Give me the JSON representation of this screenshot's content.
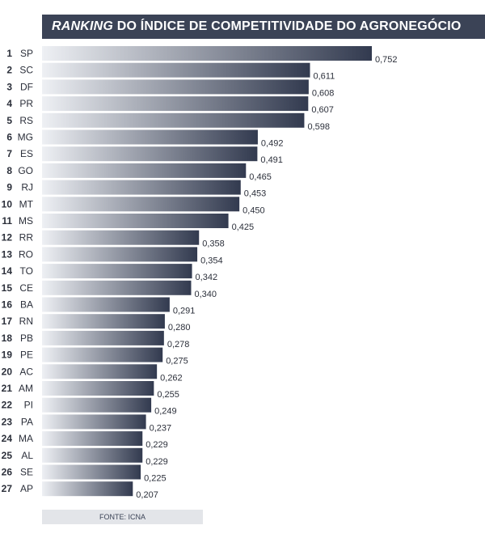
{
  "chart_data": {
    "type": "bar",
    "orientation": "horizontal",
    "title_emphasis": "RANKING",
    "title_rest": " DO ÍNDICE DE COMPETITIVIDADE DO AGRONEGÓCIO",
    "xlim": [
      0,
      0.752
    ],
    "grid": false,
    "legend": "none",
    "bar_gradient": [
      "#eef0f4",
      "#323a4f"
    ],
    "rows": [
      {
        "rank": "1",
        "state": "SP",
        "value": 0.752,
        "label": "0,752"
      },
      {
        "rank": "2",
        "state": "SC",
        "value": 0.611,
        "label": "0,611"
      },
      {
        "rank": "3",
        "state": "DF",
        "value": 0.608,
        "label": "0,608"
      },
      {
        "rank": "4",
        "state": "PR",
        "value": 0.607,
        "label": "0,607"
      },
      {
        "rank": "5",
        "state": "RS",
        "value": 0.598,
        "label": "0,598"
      },
      {
        "rank": "6",
        "state": "MG",
        "value": 0.492,
        "label": "0,492"
      },
      {
        "rank": "7",
        "state": "ES",
        "value": 0.491,
        "label": "0,491"
      },
      {
        "rank": "8",
        "state": "GO",
        "value": 0.465,
        "label": "0,465"
      },
      {
        "rank": "9",
        "state": "RJ",
        "value": 0.453,
        "label": "0,453"
      },
      {
        "rank": "10",
        "state": "MT",
        "value": 0.45,
        "label": "0,450"
      },
      {
        "rank": "11",
        "state": "MS",
        "value": 0.425,
        "label": "0,425"
      },
      {
        "rank": "12",
        "state": "RR",
        "value": 0.358,
        "label": "0,358"
      },
      {
        "rank": "13",
        "state": "RO",
        "value": 0.354,
        "label": "0,354"
      },
      {
        "rank": "14",
        "state": "TO",
        "value": 0.342,
        "label": "0,342"
      },
      {
        "rank": "15",
        "state": "CE",
        "value": 0.34,
        "label": "0,340"
      },
      {
        "rank": "16",
        "state": "BA",
        "value": 0.291,
        "label": "0,291"
      },
      {
        "rank": "17",
        "state": "RN",
        "value": 0.28,
        "label": "0,280"
      },
      {
        "rank": "18",
        "state": "PB",
        "value": 0.278,
        "label": "0,278"
      },
      {
        "rank": "19",
        "state": "PE",
        "value": 0.275,
        "label": "0,275"
      },
      {
        "rank": "20",
        "state": "AC",
        "value": 0.262,
        "label": "0,262"
      },
      {
        "rank": "21",
        "state": "AM",
        "value": 0.255,
        "label": "0,255"
      },
      {
        "rank": "22",
        "state": "PI",
        "value": 0.249,
        "label": "0,249"
      },
      {
        "rank": "23",
        "state": "PA",
        "value": 0.237,
        "label": "0,237"
      },
      {
        "rank": "24",
        "state": "MA",
        "value": 0.229,
        "label": "0,229"
      },
      {
        "rank": "25",
        "state": "AL",
        "value": 0.229,
        "label": "0,229"
      },
      {
        "rank": "26",
        "state": "SE",
        "value": 0.225,
        "label": "0,225"
      },
      {
        "rank": "27",
        "state": "AP",
        "value": 0.207,
        "label": "0,207"
      }
    ],
    "source": "FONTE: ICNA"
  }
}
